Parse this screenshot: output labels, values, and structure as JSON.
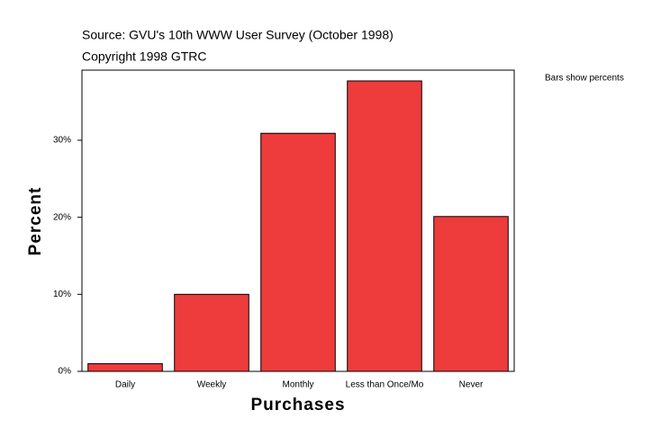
{
  "chart_data": {
    "type": "bar",
    "title": "Source: GVU's 10th WWW User Survey (October 1998)",
    "subtitle": "Copyright 1998 GTRC",
    "annotation": "Bars show percents",
    "x_label": "Purchases",
    "y_label": "Percent",
    "categories": [
      "Daily",
      "Weekly",
      "Monthly",
      "Less than Once/Mo",
      "Never"
    ],
    "values": [
      1.0,
      10.0,
      30.9,
      37.7,
      20.1
    ],
    "color": "#ee3b3b",
    "ylim": [
      0,
      39.1
    ],
    "yticks": [
      {
        "value": 0,
        "label": "0%"
      },
      {
        "value": 10,
        "label": "10%"
      },
      {
        "value": 20,
        "label": "20%"
      },
      {
        "value": 30,
        "label": "30%"
      }
    ],
    "grid": false
  }
}
